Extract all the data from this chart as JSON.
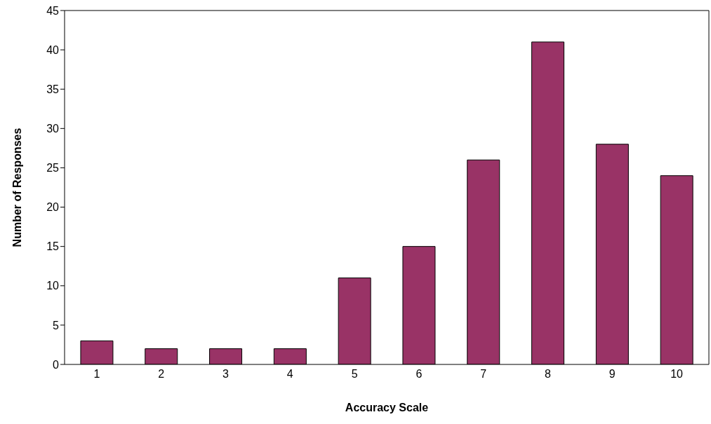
{
  "chart_data": {
    "type": "bar",
    "xlabel": "Accuracy Scale",
    "ylabel": "Number of Responses",
    "categories": [
      "1",
      "2",
      "3",
      "4",
      "5",
      "6",
      "7",
      "8",
      "9",
      "10"
    ],
    "values": [
      3,
      2,
      2,
      2,
      11,
      15,
      26,
      41,
      28,
      24
    ],
    "color": "#993366",
    "ylim": [
      0,
      45
    ],
    "yticks": [
      0,
      5,
      10,
      15,
      20,
      25,
      30,
      35,
      40,
      45
    ],
    "grid": false
  }
}
